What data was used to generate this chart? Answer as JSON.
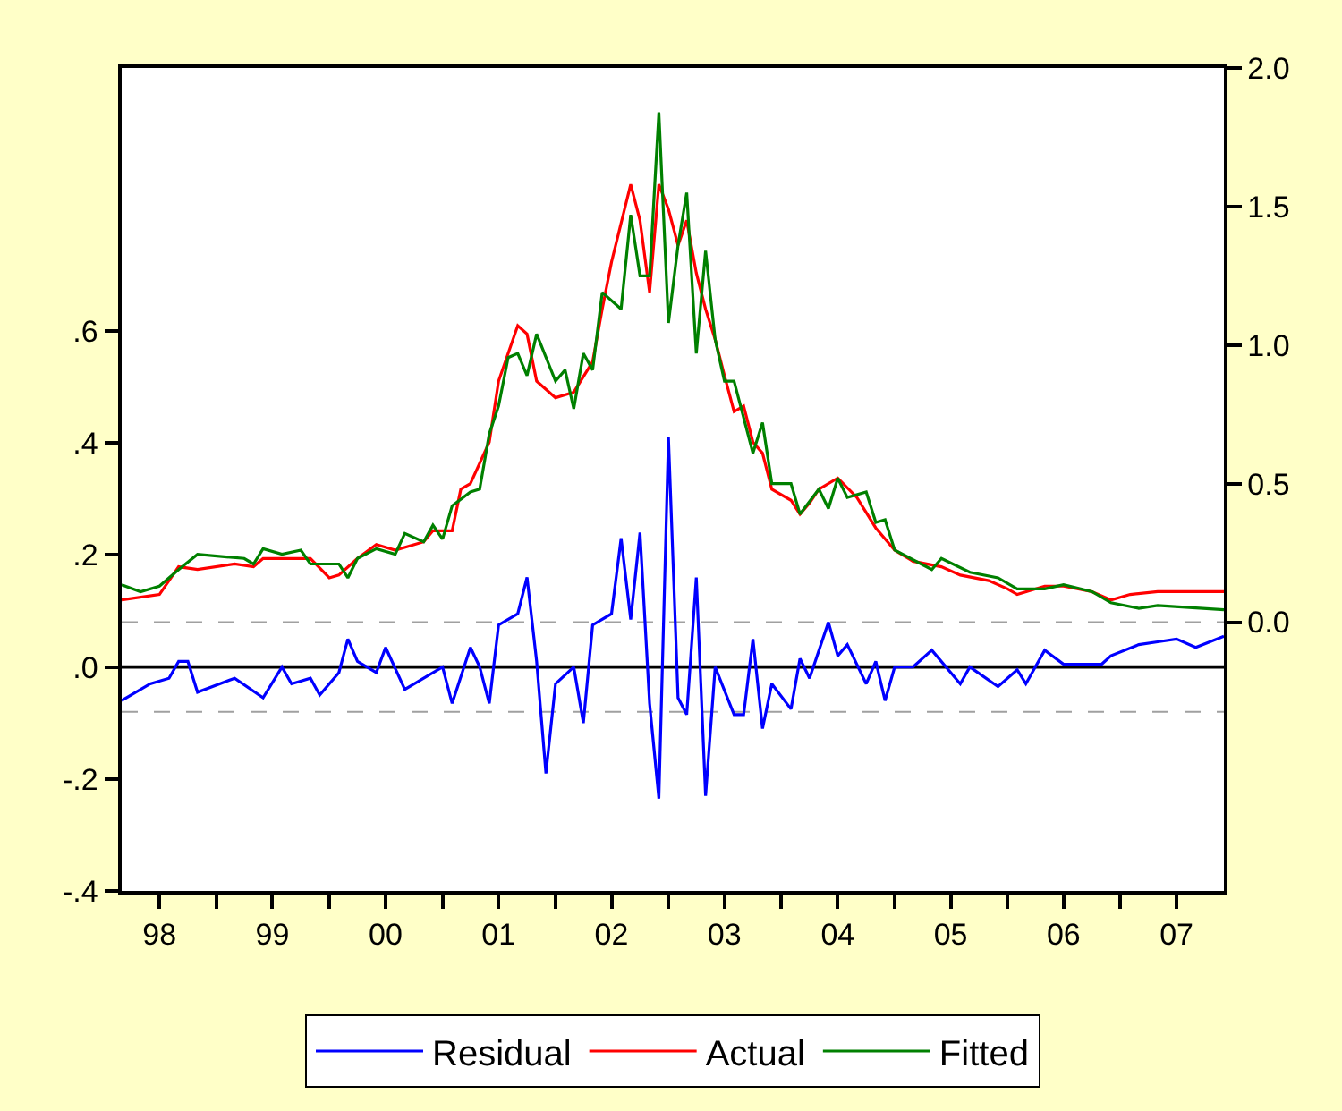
{
  "chart_data": {
    "type": "line",
    "x": [
      "1998-03",
      "1998-06",
      "1998-08",
      "1998-09",
      "1998-10",
      "1998-11",
      "1999-03",
      "1999-06",
      "1999-08",
      "1999-09",
      "1999-11",
      "1999-12",
      "2000-02",
      "2000-03",
      "2000-04",
      "2000-06",
      "2000-07",
      "2000-09",
      "2000-11",
      "2001-01",
      "2001-02",
      "2001-04",
      "2001-05",
      "2001-06",
      "2001-07",
      "2001-09",
      "2001-10",
      "2001-11",
      "2001-12",
      "2002-01",
      "2002-03",
      "2002-04",
      "2002-05",
      "2002-07",
      "2002-08",
      "2002-09",
      "2002-10",
      "2002-11",
      "2002-12",
      "2003-01",
      "2003-02",
      "2003-03",
      "2003-04",
      "2003-05",
      "2003-06",
      "2003-08",
      "2003-09",
      "2003-10",
      "2003-11",
      "2003-12",
      "2004-02",
      "2004-03",
      "2004-04",
      "2004-06",
      "2004-07",
      "2004-08",
      "2004-10",
      "2004-11",
      "2004-12",
      "2005-01",
      "2005-03",
      "2005-05",
      "2005-08",
      "2005-09",
      "2005-12",
      "2006-02",
      "2006-03",
      "2006-05",
      "2006-07",
      "2006-11",
      "2006-12",
      "2007-03",
      "2007-05",
      "2007-07",
      "2007-09",
      "2007-12"
    ],
    "series": [
      {
        "name": "Residual",
        "color": "#0000ff",
        "axis": "y",
        "values": [
          -0.06,
          -0.03,
          -0.02,
          0.01,
          0.01,
          -0.045,
          -0.02,
          -0.055,
          0.0,
          -0.03,
          -0.02,
          -0.05,
          -0.01,
          0.05,
          0.01,
          -0.01,
          0.035,
          -0.04,
          -0.02,
          0.0,
          -0.065,
          0.035,
          0.0,
          -0.065,
          0.075,
          0.095,
          0.16,
          0.01,
          -0.19,
          -0.03,
          0.0,
          -0.1,
          0.075,
          0.095,
          0.23,
          0.085,
          0.24,
          -0.065,
          -0.235,
          0.41,
          -0.055,
          -0.085,
          0.16,
          -0.23,
          0.0,
          -0.085,
          -0.085,
          0.05,
          -0.11,
          -0.03,
          -0.075,
          0.015,
          -0.02,
          0.08,
          0.02,
          0.04,
          -0.03,
          0.01,
          -0.06,
          0.0,
          0.0,
          0.03,
          -0.03,
          0.0,
          -0.035,
          -0.005,
          -0.03,
          0.03,
          0.005,
          0.005,
          0.02,
          0.04,
          0.045,
          0.05,
          0.035,
          0.055
        ]
      },
      {
        "name": "Actual",
        "color": "#ff0000",
        "axis": "y2",
        "x": [
          "1998-03",
          "1998-07",
          "1998-09",
          "1998-11",
          "1999-03",
          "1999-05",
          "1999-06",
          "1999-09",
          "1999-11",
          "2000-01",
          "2000-02",
          "2000-04",
          "2000-06",
          "2000-08",
          "2000-11",
          "2000-12",
          "2001-02",
          "2001-03",
          "2001-04",
          "2001-06",
          "2001-07",
          "2001-09",
          "2001-10",
          "2001-11",
          "2002-01",
          "2002-03",
          "2002-05",
          "2002-06",
          "2002-07",
          "2002-09",
          "2002-10",
          "2002-11",
          "2002-12",
          "2003-01",
          "2003-02",
          "2003-03",
          "2003-04",
          "2003-05",
          "2003-06",
          "2003-07",
          "2003-08",
          "2003-09",
          "2003-10",
          "2003-11",
          "2003-12",
          "2004-02",
          "2004-03",
          "2004-04",
          "2004-05",
          "2004-07",
          "2004-09",
          "2004-11",
          "2005-01",
          "2005-03",
          "2005-06",
          "2005-08",
          "2005-11",
          "2006-01",
          "2006-02",
          "2006-05",
          "2006-07",
          "2006-10",
          "2006-12",
          "2007-02",
          "2007-05",
          "2007-12"
        ],
        "values": [
          0.08,
          0.1,
          0.2,
          0.19,
          0.21,
          0.2,
          0.23,
          0.23,
          0.23,
          0.16,
          0.17,
          0.23,
          0.28,
          0.26,
          0.29,
          0.33,
          0.33,
          0.48,
          0.5,
          0.65,
          0.87,
          1.07,
          1.04,
          0.87,
          0.81,
          0.83,
          0.94,
          1.13,
          1.3,
          1.58,
          1.45,
          1.19,
          1.58,
          1.49,
          1.36,
          1.45,
          1.26,
          1.13,
          1.02,
          0.89,
          0.76,
          0.78,
          0.65,
          0.61,
          0.48,
          0.44,
          0.39,
          0.43,
          0.48,
          0.52,
          0.45,
          0.34,
          0.26,
          0.22,
          0.2,
          0.17,
          0.15,
          0.12,
          0.1,
          0.13,
          0.13,
          0.11,
          0.08,
          0.1,
          0.11,
          0.11
        ]
      },
      {
        "name": "Fitted",
        "color": "#008000",
        "axis": "y2",
        "x": [
          "1998-03",
          "1998-05",
          "1998-07",
          "1998-09",
          "1998-11",
          "1999-04",
          "1999-05",
          "1999-06",
          "1999-08",
          "1999-10",
          "1999-11",
          "2000-02",
          "2000-03",
          "2000-04",
          "2000-06",
          "2000-08",
          "2000-09",
          "2000-11",
          "2000-12",
          "2001-01",
          "2001-02",
          "2001-04",
          "2001-05",
          "2001-06",
          "2001-07",
          "2001-08",
          "2001-09",
          "2001-10",
          "2001-11",
          "2002-01",
          "2002-02",
          "2002-03",
          "2002-04",
          "2002-05",
          "2002-06",
          "2002-08",
          "2002-09",
          "2002-10",
          "2002-11",
          "2002-12",
          "2003-01",
          "2003-02",
          "2003-03",
          "2003-04",
          "2003-05",
          "2003-06",
          "2003-07",
          "2003-08",
          "2003-10",
          "2003-11",
          "2003-12",
          "2004-02",
          "2004-03",
          "2004-05",
          "2004-06",
          "2004-07",
          "2004-08",
          "2004-10",
          "2004-11",
          "2004-12",
          "2005-01",
          "2005-05",
          "2005-06",
          "2005-09",
          "2005-12",
          "2006-02",
          "2006-05",
          "2006-07",
          "2006-10",
          "2006-12",
          "2007-03",
          "2007-05",
          "2007-12"
        ],
        "values": [
          0.135,
          0.11,
          0.13,
          0.19,
          0.245,
          0.23,
          0.21,
          0.265,
          0.245,
          0.26,
          0.21,
          0.21,
          0.16,
          0.23,
          0.265,
          0.245,
          0.32,
          0.29,
          0.35,
          0.3,
          0.42,
          0.47,
          0.48,
          0.68,
          0.78,
          0.955,
          0.97,
          0.89,
          1.04,
          0.87,
          0.91,
          0.77,
          0.97,
          0.91,
          1.19,
          1.13,
          1.47,
          1.25,
          1.25,
          1.84,
          1.08,
          1.36,
          1.55,
          0.97,
          1.34,
          1.02,
          0.87,
          0.87,
          0.61,
          0.72,
          0.5,
          0.5,
          0.39,
          0.48,
          0.41,
          0.52,
          0.45,
          0.47,
          0.36,
          0.37,
          0.26,
          0.19,
          0.23,
          0.18,
          0.16,
          0.12,
          0.12,
          0.135,
          0.11,
          0.07,
          0.05,
          0.06,
          0.045
        ]
      }
    ],
    "xlim": [
      "1998-03",
      "2007-12"
    ],
    "xticks": [
      {
        "value": "1999-01",
        "label": null
      },
      {
        "value": "2000-01",
        "label": null
      },
      {
        "value": "2001-01",
        "label": null
      },
      {
        "value": "2002-01",
        "label": null
      },
      {
        "value": "2003-01",
        "label": null
      },
      {
        "value": "2004-01",
        "label": null
      },
      {
        "value": "2005-01",
        "label": null
      },
      {
        "value": "2006-01",
        "label": null
      },
      {
        "value": "2007-01",
        "label": null
      },
      {
        "value": "1998-07",
        "label": "98"
      },
      {
        "value": "1999-07",
        "label": "99"
      },
      {
        "value": "2000-07",
        "label": "00"
      },
      {
        "value": "2001-07",
        "label": "01"
      },
      {
        "value": "2002-07",
        "label": "02"
      },
      {
        "value": "2003-07",
        "label": "03"
      },
      {
        "value": "2004-07",
        "label": "04"
      },
      {
        "value": "2005-07",
        "label": "05"
      },
      {
        "value": "2006-07",
        "label": "06"
      },
      {
        "value": "2007-07",
        "label": "07"
      }
    ],
    "ylim": [
      -0.4,
      1.07
    ],
    "yticks": [
      {
        "value": -0.4,
        "label": "-.4"
      },
      {
        "value": -0.2,
        "label": "-.2"
      },
      {
        "value": 0,
        "label": ".0"
      },
      {
        "value": 0.2,
        "label": ".2"
      },
      {
        "value": 0.4,
        "label": ".4"
      },
      {
        "value": 0.6,
        "label": ".6"
      }
    ],
    "y2lim": [
      -0.97,
      2.0
    ],
    "y2ticks": [
      {
        "value": 0,
        "label": "0.0"
      },
      {
        "value": 0.5,
        "label": "0.5"
      },
      {
        "value": 1.0,
        "label": "1.0"
      },
      {
        "value": 1.5,
        "label": "1.5"
      },
      {
        "value": 2.0,
        "label": "2.0"
      }
    ],
    "ref_lines": [
      {
        "axis": "y",
        "value": 0,
        "color": "#000000",
        "line_style": "solid"
      },
      {
        "axis": "y",
        "value": 0.08,
        "color": "#a0a0a0",
        "line_style": "dashed"
      },
      {
        "axis": "y",
        "value": -0.08,
        "color": "#a0a0a0",
        "line_style": "dashed"
      }
    ],
    "grid": false,
    "legend": "bottom",
    "marker": "none",
    "line_style": "solid"
  }
}
